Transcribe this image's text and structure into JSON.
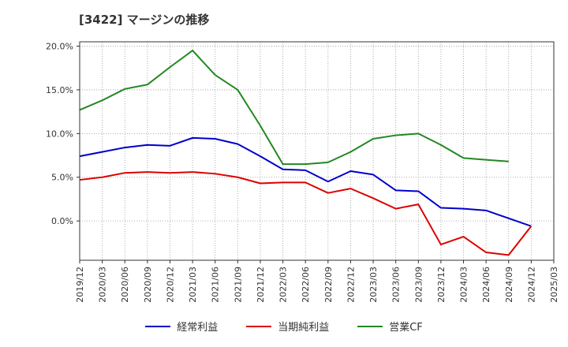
{
  "chart_data": {
    "type": "line",
    "title": "[3422]  マージンの推移",
    "x": [
      "2019/12",
      "2020/03",
      "2020/06",
      "2020/09",
      "2020/12",
      "2021/03",
      "2021/06",
      "2021/09",
      "2021/12",
      "2022/03",
      "2022/06",
      "2022/09",
      "2022/12",
      "2023/03",
      "2023/06",
      "2023/09",
      "2023/12",
      "2024/03",
      "2024/06",
      "2024/09",
      "2024/12",
      "2025/03"
    ],
    "yticks": [
      "20.0%",
      "15.0%",
      "10.0%",
      "5.0%",
      "0.0%"
    ],
    "ylim": [
      -4.5,
      20.5
    ],
    "grid": true,
    "legend_position": "bottom",
    "series": [
      {
        "name": "経常利益",
        "color": "#0000cc",
        "values": [
          7.4,
          7.9,
          8.4,
          8.7,
          8.6,
          9.5,
          9.4,
          8.8,
          7.4,
          5.9,
          5.8,
          4.5,
          5.7,
          5.3,
          3.5,
          3.4,
          1.5,
          1.4,
          1.2,
          0.3,
          -0.6,
          null
        ]
      },
      {
        "name": "当期純利益",
        "color": "#dd0000",
        "values": [
          4.7,
          5.0,
          5.5,
          5.6,
          5.5,
          5.6,
          5.4,
          5.0,
          4.3,
          4.4,
          4.4,
          3.2,
          3.7,
          2.6,
          1.4,
          1.9,
          -2.7,
          -1.8,
          -3.6,
          -3.9,
          -0.6,
          null
        ]
      },
      {
        "name": "営業CF",
        "color": "#228822",
        "values": [
          12.7,
          13.8,
          15.1,
          15.6,
          17.6,
          19.5,
          16.7,
          15.0,
          10.9,
          6.5,
          6.5,
          6.7,
          7.9,
          9.4,
          9.8,
          10.0,
          8.7,
          7.2,
          7.0,
          6.8,
          null,
          null
        ]
      }
    ]
  }
}
